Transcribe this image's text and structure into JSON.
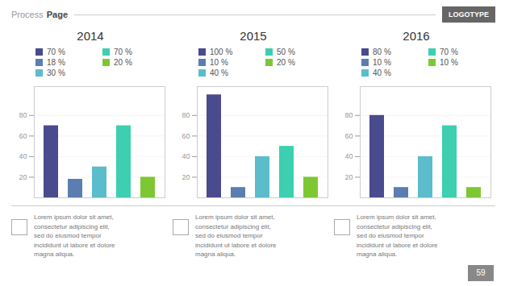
{
  "chart_data": [
    {
      "type": "bar",
      "title": "2014",
      "categories": [
        null,
        null,
        null,
        null,
        null
      ],
      "series": [
        {
          "name": "70 %",
          "color": "#4a4a8f",
          "values": [
            70,
            null,
            null,
            null,
            null
          ]
        },
        {
          "name": "18 %",
          "color": "#5b7db1",
          "values": [
            null,
            18,
            null,
            null,
            null
          ]
        },
        {
          "name": "30 %",
          "color": "#5bbccc",
          "values": [
            null,
            null,
            30,
            null,
            null
          ]
        },
        {
          "name": "70 %",
          "color": "#3dcfb0",
          "values": [
            null,
            null,
            null,
            70,
            null
          ]
        },
        {
          "name": "20 %",
          "color": "#7dc832",
          "values": [
            null,
            null,
            null,
            null,
            20
          ]
        }
      ],
      "ylim": [
        0,
        108
      ],
      "yticks": [
        20,
        40,
        60,
        80
      ],
      "grid": true,
      "tick_labels": "y"
    },
    {
      "type": "bar",
      "title": "2015",
      "categories": [
        null,
        null,
        null,
        null,
        null
      ],
      "series": [
        {
          "name": "100 %",
          "color": "#4a4a8f",
          "values": [
            100,
            null,
            null,
            null,
            null
          ]
        },
        {
          "name": "10 %",
          "color": "#5b7db1",
          "values": [
            null,
            10,
            null,
            null,
            null
          ]
        },
        {
          "name": "40 %",
          "color": "#5bbccc",
          "values": [
            null,
            null,
            40,
            null,
            null
          ]
        },
        {
          "name": "50 %",
          "color": "#3dcfb0",
          "values": [
            null,
            null,
            null,
            50,
            null
          ]
        },
        {
          "name": "20 %",
          "color": "#7dc832",
          "values": [
            null,
            null,
            null,
            null,
            20
          ]
        }
      ],
      "ylim": [
        0,
        108
      ],
      "yticks": [
        20,
        40,
        60,
        80
      ],
      "grid": true,
      "tick_labels": "y"
    },
    {
      "type": "bar",
      "title": "2016",
      "categories": [
        null,
        null,
        null,
        null,
        null
      ],
      "series": [
        {
          "name": "80 %",
          "color": "#4a4a8f",
          "values": [
            80,
            null,
            null,
            null,
            null
          ]
        },
        {
          "name": "10 %",
          "color": "#5b7db1",
          "values": [
            null,
            10,
            null,
            null,
            null
          ]
        },
        {
          "name": "40 %",
          "color": "#5bbccc",
          "values": [
            null,
            null,
            40,
            null,
            null
          ]
        },
        {
          "name": "70 %",
          "color": "#3dcfb0",
          "values": [
            null,
            null,
            null,
            70,
            null
          ]
        },
        {
          "name": "10 %",
          "color": "#7dc832",
          "values": [
            null,
            null,
            null,
            null,
            10
          ]
        }
      ],
      "ylim": [
        0,
        108
      ],
      "yticks": [
        20,
        40,
        60,
        80
      ],
      "grid": true,
      "tick_labels": "y"
    }
  ],
  "annotations": [
    "Process",
    "Page",
    "LOGOTYPE",
    "Lorem ipsum dolor sit amet,\nconsectetur adipiscing elit,\nsed do eiusmod tempor\nincididunt ut labore et dolore\nmagna aliqua.",
    "Lorem ipsum dolor sit amet,\nconsectetur adipiscing elit,\nsed do eiusmod tempor\nincididunt ut labore et dolore\nmagna aliqua.",
    "Lorem ipsum dolor sit amet,\nconsectetur adipiscing elit,\nsed do eiusmod tempor\nincididunt ut labore et dolore\nmagna aliqua.",
    "59"
  ]
}
